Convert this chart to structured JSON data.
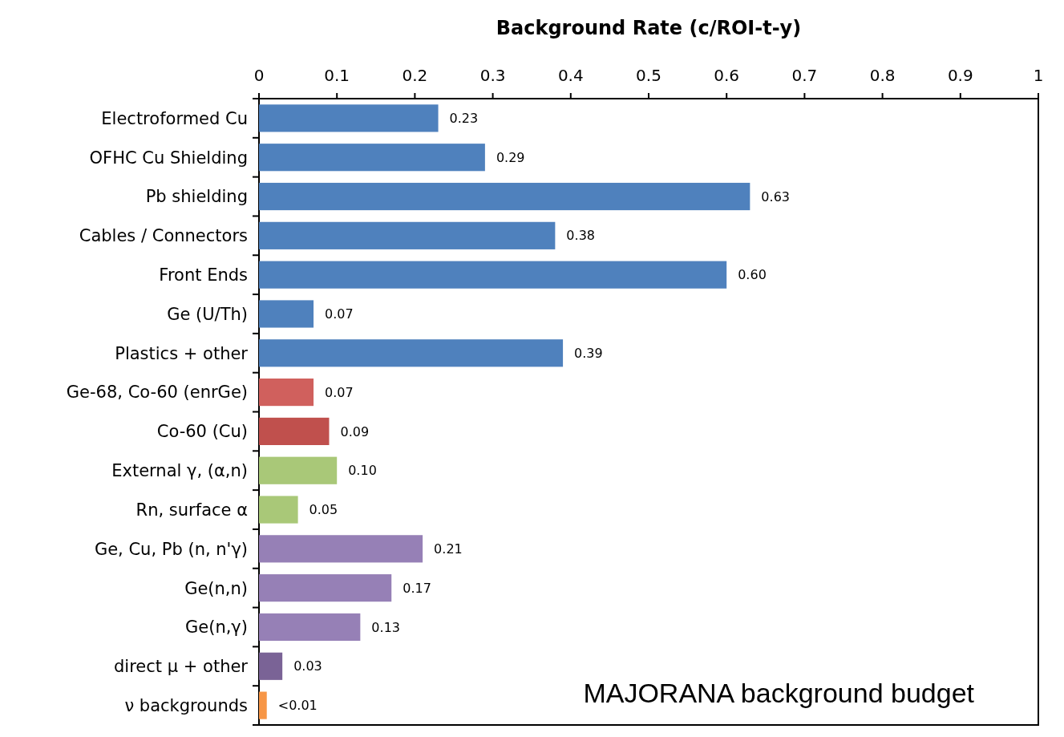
{
  "chart_data": {
    "type": "bar",
    "orientation": "horizontal",
    "xlabel": "Background Rate (c/ROI-t-y)",
    "categories": [
      "Electroformed Cu",
      "OFHC Cu Shielding",
      "Pb shielding",
      "Cables / Connectors",
      "Front Ends",
      "Ge (U/Th)",
      "Plastics + other",
      "Ge-68, Co-60 (enrGe)",
      "Co-60 (Cu)",
      "External γ, (α,n)",
      "Rn, surface α",
      "Ge, Cu, Pb (n, n'γ)",
      "Ge(n,n)",
      "Ge(n,γ)",
      "direct μ + other",
      "ν backgrounds"
    ],
    "values": [
      0.23,
      0.29,
      0.63,
      0.38,
      0.6,
      0.07,
      0.39,
      0.07,
      0.09,
      0.1,
      0.05,
      0.21,
      0.17,
      0.13,
      0.03,
      0.01
    ],
    "value_labels": [
      "0.23",
      "0.29",
      "0.63",
      "0.38",
      "0.60",
      "0.07",
      "0.39",
      "0.07",
      "0.09",
      "0.10",
      "0.05",
      "0.21",
      "0.17",
      "0.13",
      "0.03",
      "<0.01"
    ],
    "colors": [
      "#4f81bd",
      "#4f81bd",
      "#4f81bd",
      "#4f81bd",
      "#4f81bd",
      "#4f81bd",
      "#4f81bd",
      "#d0605d",
      "#c0504d",
      "#a9c878",
      "#a9c878",
      "#9680b6",
      "#9680b6",
      "#9680b6",
      "#7a6396",
      "#f79646"
    ],
    "xlim": [
      0,
      1
    ],
    "xticks": [
      0,
      0.1,
      0.2,
      0.3,
      0.4,
      0.5,
      0.6,
      0.7,
      0.8,
      0.9,
      1
    ],
    "annotations": [
      "MAJORANA background budget"
    ],
    "grid": false
  }
}
